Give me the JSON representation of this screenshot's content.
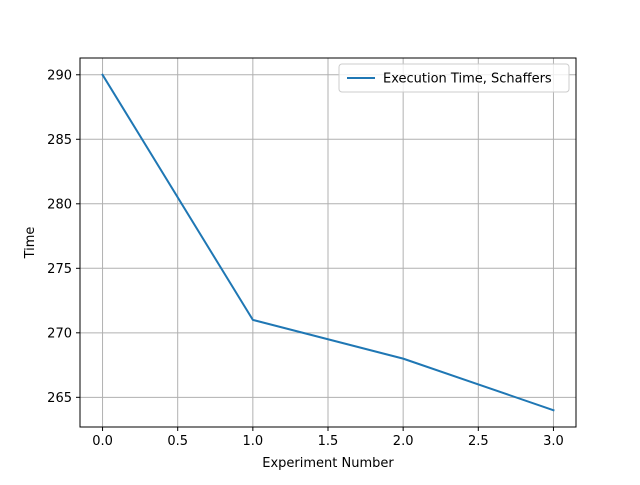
{
  "chart_data": {
    "type": "line",
    "title": "",
    "xlabel": "Experiment Number",
    "ylabel": "Time",
    "xlim": [
      -0.15,
      3.15
    ],
    "ylim": [
      262.7,
      291.3
    ],
    "x_ticks": [
      0.0,
      0.5,
      1.0,
      1.5,
      2.0,
      2.5,
      3.0
    ],
    "x_tick_labels": [
      "0.0",
      "0.5",
      "1.0",
      "1.5",
      "2.0",
      "2.5",
      "3.0"
    ],
    "y_ticks": [
      265,
      270,
      275,
      280,
      285,
      290
    ],
    "y_tick_labels": [
      "265",
      "270",
      "275",
      "280",
      "285",
      "290"
    ],
    "grid": true,
    "legend_position": "upper-right",
    "series": [
      {
        "name": "Execution Time, Schaffers",
        "color": "#1f77b4",
        "x": [
          0,
          1,
          2,
          3
        ],
        "y": [
          290,
          271,
          268,
          264
        ]
      }
    ]
  }
}
